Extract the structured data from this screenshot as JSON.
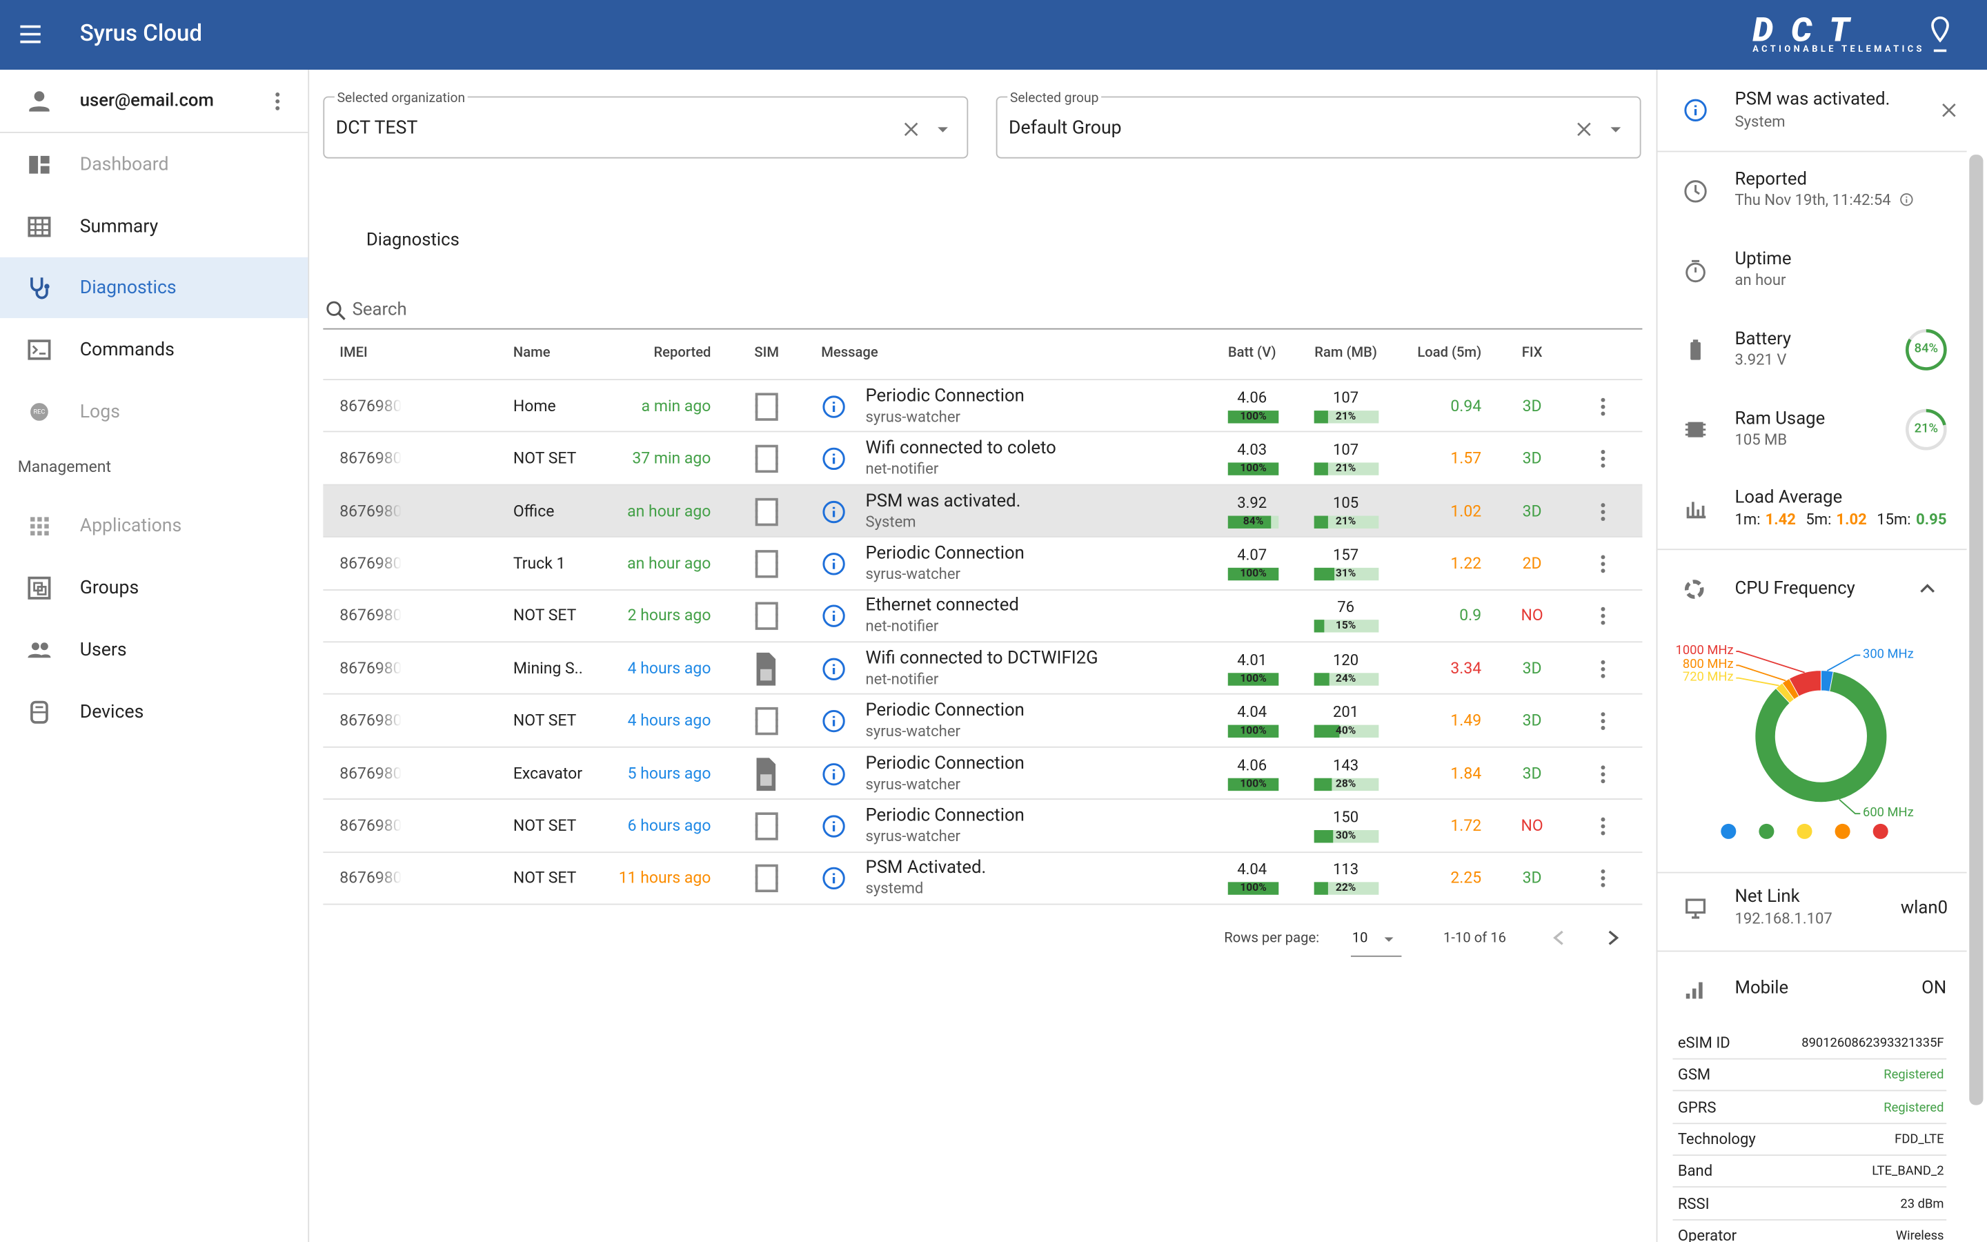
{
  "header": {
    "title": "Syrus Cloud",
    "logo": "DCT",
    "logo_tagline": "ACTIONABLE TELEMATICS"
  },
  "sidebar": {
    "user": "user@email.com",
    "items": [
      {
        "label": "Dashboard",
        "icon": "dashboard",
        "state": "disabled"
      },
      {
        "label": "Summary",
        "icon": "table",
        "state": "normal"
      },
      {
        "label": "Diagnostics",
        "icon": "steth",
        "state": "active"
      },
      {
        "label": "Commands",
        "icon": "terminal",
        "state": "normal"
      },
      {
        "label": "Logs",
        "icon": "rec",
        "state": "disabled"
      }
    ],
    "section": "Management",
    "management": [
      {
        "label": "Applications",
        "icon": "apps",
        "state": "disabled"
      },
      {
        "label": "Groups",
        "icon": "groups",
        "state": "normal"
      },
      {
        "label": "Users",
        "icon": "users",
        "state": "normal"
      },
      {
        "label": "Devices",
        "icon": "device",
        "state": "normal"
      }
    ]
  },
  "filters": {
    "organization": {
      "label": "Selected organization",
      "value": "DCT TEST"
    },
    "group": {
      "label": "Selected group",
      "value": "Default Group"
    }
  },
  "tab": "Diagnostics",
  "search": "Search",
  "table": {
    "columns": [
      "IMEI",
      "Name",
      "Reported",
      "SIM",
      "Message",
      "Batt (V)",
      "Ram (MB)",
      "Load (5m)",
      "FIX"
    ],
    "selected_row": 2,
    "rows": [
      {
        "imei": "8676980",
        "name": "Home",
        "reported": "a min ago",
        "reported_color": "#43a047",
        "sim": "chip",
        "message": "Periodic Connection",
        "source": "syrus-watcher",
        "batt": "4.06",
        "batt_pct": "100%",
        "ram": "107",
        "ram_pct": "21%",
        "load": "0.94",
        "fix": "3D"
      },
      {
        "imei": "8676980",
        "name": "NOT SET",
        "reported": "37 min ago",
        "reported_color": "#43a047",
        "sim": "chip",
        "message": "Wifi connected to coleto",
        "source": "net-notifier",
        "batt": "4.03",
        "batt_pct": "100%",
        "ram": "107",
        "ram_pct": "21%",
        "load": "1.57",
        "fix": "3D"
      },
      {
        "imei": "8676980",
        "name": "Office",
        "reported": "an hour ago",
        "reported_color": "#43a047",
        "sim": "chip",
        "message": "PSM was activated.",
        "source": "System",
        "batt": "3.92",
        "batt_pct": "84%",
        "ram": "105",
        "ram_pct": "21%",
        "load": "1.02",
        "fix": "3D"
      },
      {
        "imei": "8676980",
        "name": "Truck 1",
        "reported": "an hour ago",
        "reported_color": "#43a047",
        "sim": "chip",
        "message": "Periodic Connection",
        "source": "syrus-watcher",
        "batt": "4.07",
        "batt_pct": "100%",
        "ram": "157",
        "ram_pct": "31%",
        "load": "1.22",
        "fix": "2D"
      },
      {
        "imei": "8676980",
        "name": "NOT SET",
        "reported": "2 hours ago",
        "reported_color": "#43a047",
        "sim": "chip",
        "message": "Ethernet connected",
        "source": "net-notifier",
        "batt": null,
        "batt_pct": null,
        "ram": "76",
        "ram_pct": "15%",
        "load": "0.9",
        "fix": "NO"
      },
      {
        "imei": "8676980",
        "name": "Mining S..",
        "reported": "4 hours ago",
        "reported_color": "#1e88e5",
        "sim": "card",
        "message": "Wifi connected to DCTWIFI2G",
        "source": "net-notifier",
        "batt": "4.01",
        "batt_pct": "100%",
        "ram": "120",
        "ram_pct": "24%",
        "load": "3.34",
        "fix": "3D"
      },
      {
        "imei": "8676980",
        "name": "NOT SET",
        "reported": "4 hours ago",
        "reported_color": "#1e88e5",
        "sim": "chip",
        "message": "Periodic Connection",
        "source": "syrus-watcher",
        "batt": "4.04",
        "batt_pct": "100%",
        "ram": "201",
        "ram_pct": "40%",
        "load": "1.49",
        "fix": "3D"
      },
      {
        "imei": "8676980",
        "name": "Excavator",
        "reported": "5 hours ago",
        "reported_color": "#1e88e5",
        "sim": "card",
        "message": "Periodic Connection",
        "source": "syrus-watcher",
        "batt": "4.06",
        "batt_pct": "100%",
        "ram": "143",
        "ram_pct": "28%",
        "load": "1.84",
        "fix": "3D"
      },
      {
        "imei": "8676980",
        "name": "NOT SET",
        "reported": "6 hours ago",
        "reported_color": "#1e88e5",
        "sim": "chip",
        "message": "Periodic Connection",
        "source": "syrus-watcher",
        "batt": null,
        "batt_pct": null,
        "ram": "150",
        "ram_pct": "30%",
        "load": "1.72",
        "fix": "NO"
      },
      {
        "imei": "8676980",
        "name": "NOT SET",
        "reported": "11 hours ago",
        "reported_color": "#fb8c00",
        "sim": "chip",
        "message": "PSM Activated.",
        "source": "systemd",
        "batt": "4.04",
        "batt_pct": "100%",
        "ram": "113",
        "ram_pct": "22%",
        "load": "2.25",
        "fix": "3D"
      }
    ]
  },
  "pagination": {
    "rows_label": "Rows per page:",
    "rows": "10",
    "range": "1-10 of 16"
  },
  "panel": {
    "notification": {
      "title": "PSM was activated.",
      "subtitle": "System"
    },
    "reported": {
      "label": "Reported",
      "value": "Thu Nov 19th, 11:42:54"
    },
    "uptime": {
      "label": "Uptime",
      "value": "an hour"
    },
    "battery": {
      "label": "Battery",
      "value": "3.921 V",
      "pct": "84%"
    },
    "ram": {
      "label": "Ram Usage",
      "value": "105 MB",
      "pct": "21%"
    },
    "load": {
      "label": "Load Average",
      "items": [
        {
          "label": "1m:",
          "value": "1.42"
        },
        {
          "label": "5m:",
          "value": "1.02"
        },
        {
          "label": "15m:",
          "value": "0.95"
        }
      ]
    },
    "cpu": {
      "title": "CPU Frequency",
      "chart_data": {
        "type": "donut",
        "categories": [
          "300 MHz",
          "600 MHz",
          "720 MHz",
          "800 MHz",
          "1000 MHz"
        ],
        "values": [
          3,
          85,
          2,
          2,
          8
        ],
        "colors": [
          "#1e88e5",
          "#43a047",
          "#fdd835",
          "#fb8c00",
          "#e53935"
        ]
      }
    },
    "netlink": {
      "label": "Net Link",
      "value": "192.168.1.107",
      "iface": "wlan0"
    },
    "mobile": {
      "label": "Mobile",
      "state": "ON",
      "rows": [
        {
          "key": "eSIM ID",
          "value": "8901260862393321335F"
        },
        {
          "key": "GSM",
          "value": "Registered",
          "color": "#43a047"
        },
        {
          "key": "GPRS",
          "value": "Registered",
          "color": "#43a047"
        },
        {
          "key": "Technology",
          "value": "FDD_LTE"
        },
        {
          "key": "Band",
          "value": "LTE_BAND_2"
        },
        {
          "key": "RSSI",
          "value": "23 dBm"
        },
        {
          "key": "Operator",
          "value": "Wireless"
        }
      ]
    }
  }
}
